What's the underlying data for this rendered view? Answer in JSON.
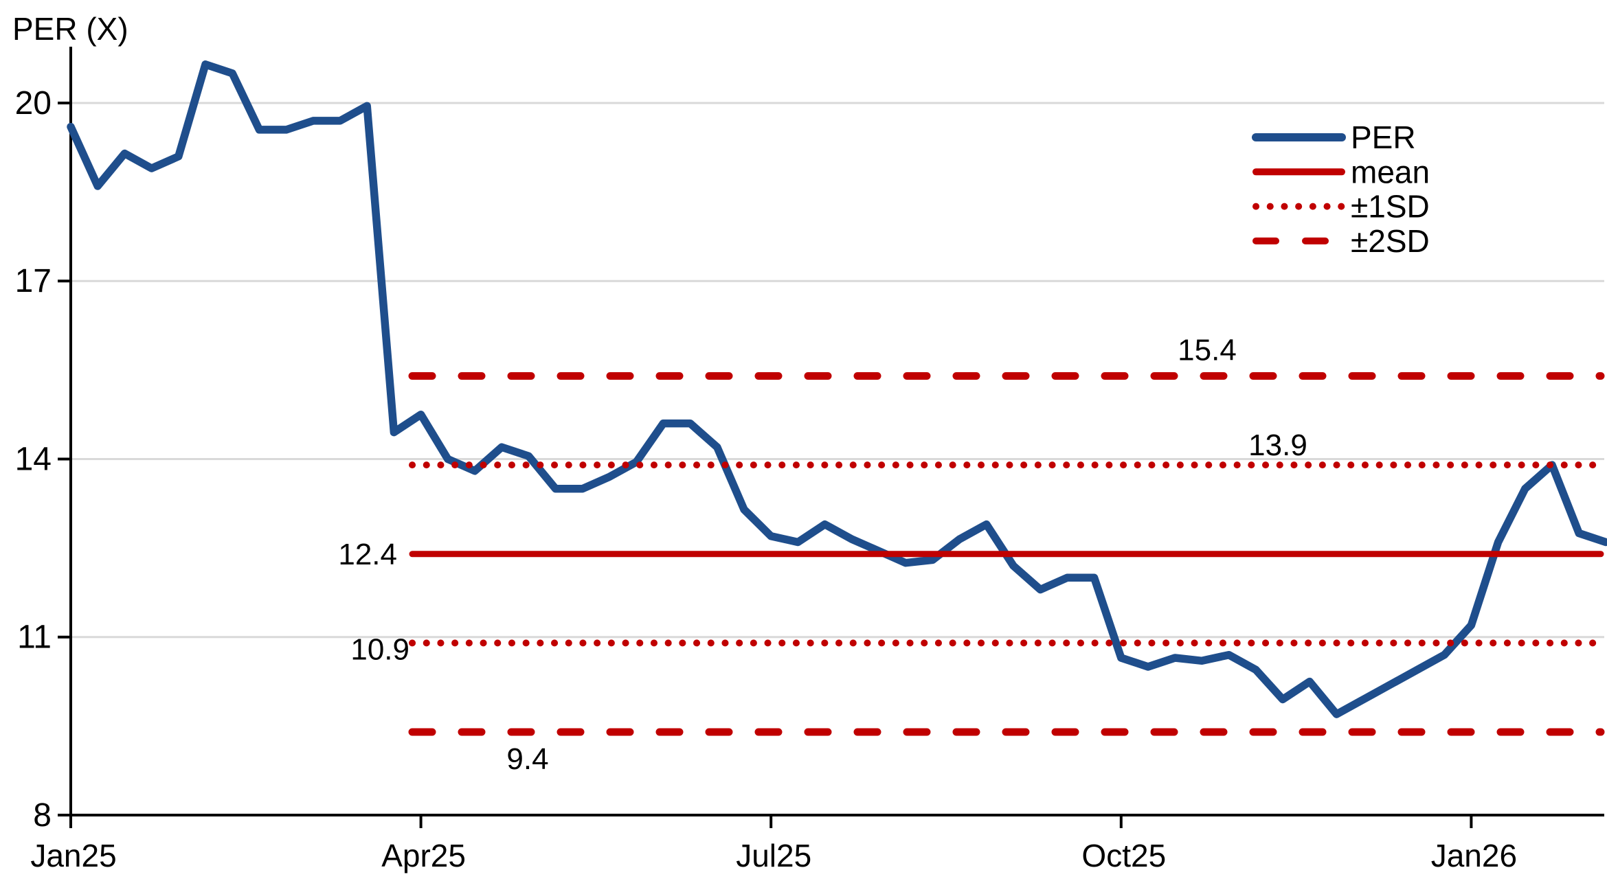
{
  "chart_data": {
    "type": "line",
    "axis_title": "PER (X)",
    "colors": {
      "per_line": "#1F4E8C",
      "reference": "#C00000",
      "grid": "#D9D9D9",
      "axis": "#000000",
      "text": "#000000"
    },
    "x_tick_labels": [
      "Jan25",
      "Apr25",
      "Jul25",
      "Oct25",
      "Jan26"
    ],
    "x_tick_indices": [
      0,
      13,
      26,
      39,
      52
    ],
    "y_ticks": [
      20,
      17,
      14,
      11,
      8
    ],
    "ylim": [
      8,
      21.4
    ],
    "grid": "horizontal-only",
    "legend_position": "top-right",
    "series": [
      {
        "name": "PER",
        "values": [
          19.6,
          18.6,
          19.15,
          18.9,
          19.1,
          20.65,
          20.5,
          19.55,
          19.55,
          19.7,
          19.7,
          19.95,
          14.45,
          14.75,
          14.0,
          13.8,
          14.2,
          14.05,
          13.5,
          13.5,
          13.7,
          13.95,
          14.6,
          14.6,
          14.2,
          13.15,
          12.7,
          12.6,
          12.9,
          12.65,
          12.45,
          12.25,
          12.3,
          12.65,
          12.9,
          12.2,
          11.8,
          12.0,
          12.0,
          10.65,
          10.5,
          10.65,
          10.6,
          10.7,
          10.45,
          9.95,
          10.25,
          9.7,
          9.95,
          10.2,
          10.45,
          10.7,
          11.2,
          12.6,
          13.5,
          13.9,
          12.75,
          12.6
        ]
      }
    ],
    "reference_lines": [
      {
        "name": "mean",
        "value": 12.4,
        "label": "12.4",
        "style": "solid"
      },
      {
        "name": "plus1sd",
        "value": 13.9,
        "label": "13.9",
        "style": "dotted"
      },
      {
        "name": "minus1sd",
        "value": 10.9,
        "label": "10.9",
        "style": "dotted"
      },
      {
        "name": "plus2sd",
        "value": 15.4,
        "label": "15.4",
        "style": "dashed"
      },
      {
        "name": "minus2sd",
        "value": 9.4,
        "label": "9.4",
        "style": "dashed"
      }
    ],
    "legend": [
      {
        "name": "per",
        "label": "PER",
        "style": "solid",
        "color": "#1F4E8C"
      },
      {
        "name": "mean",
        "label": "mean",
        "style": "solid",
        "color": "#C00000"
      },
      {
        "name": "sd1",
        "label": "±1SD",
        "style": "dotted",
        "color": "#C00000"
      },
      {
        "name": "sd2",
        "label": "±2SD",
        "style": "dashed",
        "color": "#C00000"
      }
    ]
  }
}
